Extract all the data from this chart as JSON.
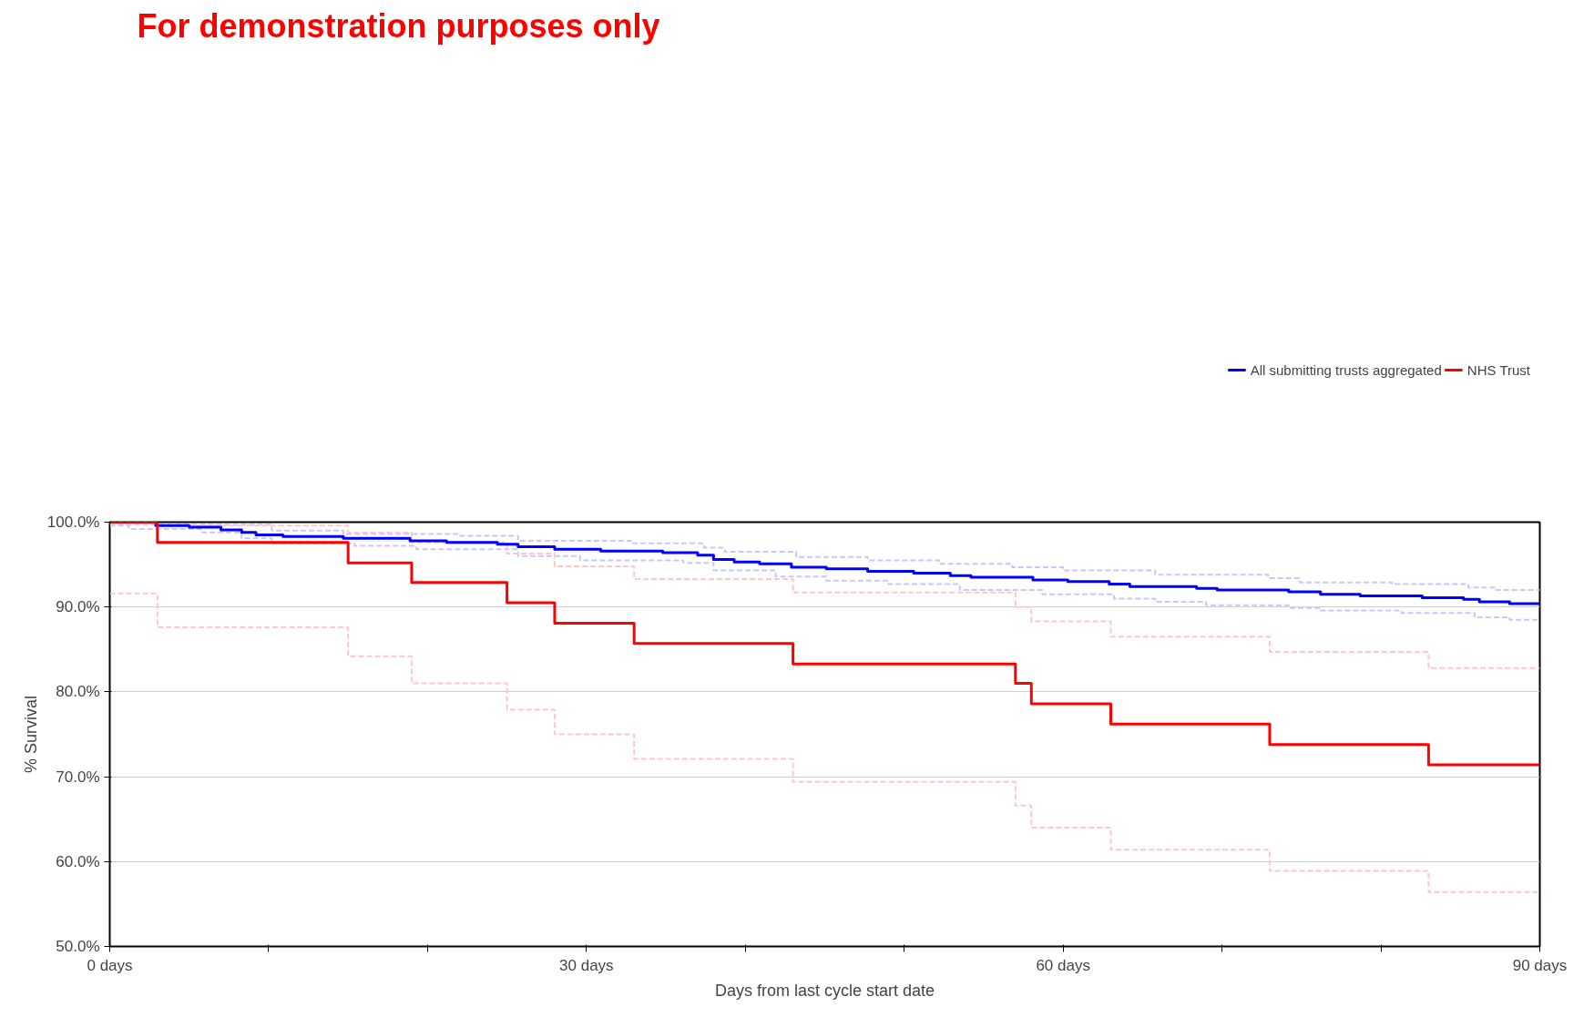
{
  "chart_data": {
    "type": "step",
    "title": "For demonstration purposes only",
    "xlabel": "Days from last cycle start date",
    "ylabel": "% Survival",
    "xlim": [
      0,
      90
    ],
    "ylim": [
      50,
      100
    ],
    "xticks": [
      {
        "value": 0,
        "label": "0 days"
      },
      {
        "value": 10,
        "label": null
      },
      {
        "value": 20,
        "label": null
      },
      {
        "value": 30,
        "label": "30 days"
      },
      {
        "value": 40,
        "label": null
      },
      {
        "value": 50,
        "label": null
      },
      {
        "value": 60,
        "label": "60 days"
      },
      {
        "value": 70,
        "label": null
      },
      {
        "value": 80,
        "label": null
      },
      {
        "value": 90,
        "label": "90 days"
      }
    ],
    "yticks": [
      {
        "value": 50,
        "label": "50.0%"
      },
      {
        "value": 60,
        "label": "60.0%"
      },
      {
        "value": 70,
        "label": "70.0%"
      },
      {
        "value": 80,
        "label": "80.0%"
      },
      {
        "value": 90,
        "label": "90.0%"
      },
      {
        "value": 100,
        "label": "100.0%"
      }
    ],
    "grid": "y",
    "legend": "top right",
    "marker": "none",
    "series": [
      {
        "color": "#c8c8ff",
        "line_style": "dashed",
        "x": [
          0,
          10.2,
          14.7,
          21.9,
          25.7,
          32.8,
          37.4,
          38.7,
          43.2,
          47.7,
          52.2,
          56.8,
          60.0,
          65.8,
          72.9,
          74.9,
          80.7,
          85.5,
          87.2,
          90
        ],
        "values": [
          99.7,
          99.0,
          98.6,
          98.4,
          97.8,
          97.5,
          97.0,
          96.5,
          95.9,
          95.5,
          95.1,
          94.7,
          94.3,
          93.8,
          93.4,
          92.9,
          92.7,
          92.3,
          92.0,
          92.0
        ]
      },
      {
        "color": "#c8c8ff",
        "line_style": "dashed",
        "x": [
          0,
          1.2,
          5.7,
          8.3,
          10.2,
          15.4,
          19.3,
          25.7,
          29.6,
          36.1,
          38.0,
          41.9,
          45.1,
          49.0,
          53.5,
          58.7,
          63.2,
          65.8,
          69.0,
          74.2,
          76.2,
          81.3,
          85.9,
          88.1,
          90
        ],
        "values": [
          99.6,
          99.2,
          98.8,
          98.1,
          97.5,
          97.2,
          96.8,
          96.0,
          95.5,
          95.2,
          94.3,
          93.6,
          93.1,
          92.7,
          92.0,
          91.5,
          91.0,
          90.6,
          90.2,
          89.9,
          89.6,
          89.3,
          88.8,
          88.5,
          88.5
        ]
      },
      {
        "color": "#ffc8c8",
        "line_style": "dashed",
        "x": [
          0,
          3,
          15,
          19,
          25,
          28,
          33,
          43,
          57,
          58,
          63,
          73,
          83,
          90
        ],
        "values": [
          100,
          99.6,
          98.8,
          97.6,
          96.3,
          94.8,
          93.3,
          91.7,
          90.0,
          88.3,
          86.5,
          84.7,
          82.8,
          82.8
        ]
      },
      {
        "color": "#ffc8c8",
        "line_style": "dashed",
        "x": [
          0,
          3,
          15,
          19,
          25,
          28,
          33,
          43,
          57,
          58,
          63,
          73,
          83,
          90
        ],
        "values": [
          91.6,
          87.6,
          84.2,
          81.0,
          77.9,
          75.0,
          72.1,
          69.4,
          66.6,
          64.0,
          61.4,
          58.9,
          56.4,
          56.4
        ]
      },
      {
        "name": "All submitting trusts aggregated",
        "color": "#0000ff",
        "line_style": "solid",
        "x": [
          0,
          2.9,
          5.0,
          7.0,
          8.3,
          9.2,
          10.9,
          14.7,
          18.9,
          21.2,
          24.4,
          25.7,
          28.0,
          30.9,
          34.8,
          37.0,
          38.0,
          39.3,
          40.9,
          42.9,
          45.1,
          47.7,
          50.6,
          52.9,
          54.2,
          58.1,
          60.3,
          62.9,
          64.2,
          68.4,
          69.7,
          74.2,
          76.2,
          78.7,
          82.6,
          85.2,
          86.2,
          88.1,
          90
        ],
        "values": [
          100,
          99.6,
          99.4,
          99.1,
          98.8,
          98.5,
          98.3,
          98.1,
          97.8,
          97.6,
          97.4,
          97.1,
          96.8,
          96.6,
          96.4,
          96.1,
          95.6,
          95.3,
          95.1,
          94.7,
          94.5,
          94.2,
          94.0,
          93.7,
          93.5,
          93.2,
          93.0,
          92.7,
          92.4,
          92.2,
          92.0,
          91.8,
          91.5,
          91.3,
          91.1,
          90.9,
          90.6,
          90.4,
          90.4
        ]
      },
      {
        "name": "NHS Trust",
        "color": "#ff0000",
        "line_style": "solid",
        "x": [
          0,
          3,
          15,
          19,
          25,
          28,
          33,
          43,
          57,
          58,
          63,
          73,
          83,
          90
        ],
        "values": [
          100,
          97.6,
          95.2,
          92.9,
          90.5,
          88.1,
          85.7,
          83.3,
          81.0,
          78.6,
          76.2,
          73.8,
          71.4,
          71.4
        ]
      }
    ]
  }
}
